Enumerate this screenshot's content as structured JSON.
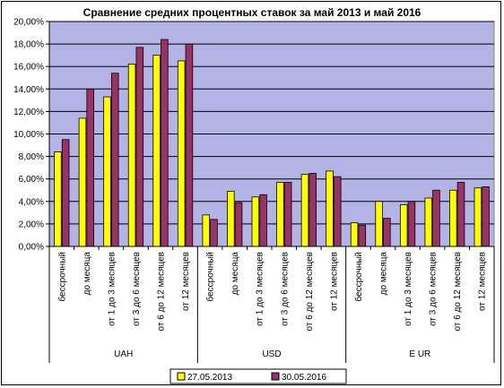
{
  "chart_data": {
    "type": "bar",
    "title": "Сравнение средних процентных ставок за май 2013 и май 2016",
    "xlabel": "",
    "ylabel": "",
    "ylim": [
      0,
      20
    ],
    "y_ticks": [
      "0,00%",
      "2,00%",
      "4,00%",
      "6,00%",
      "8,00%",
      "10,00%",
      "12,00%",
      "14,00%",
      "16,00%",
      "18,00%",
      "20,00%"
    ],
    "grid": true,
    "legend_position": "bottom",
    "groups": [
      {
        "name": "UAH",
        "categories": [
          "бессрочный",
          "до месяца",
          "от 1 до 3 месяцев",
          "от 3 до 6 месяцев",
          "от 6 до 12 месяцев",
          "от 12 месяцев"
        ]
      },
      {
        "name": "USD",
        "categories": [
          "бессрочный",
          "до месяца",
          "от 1 до 3 месяцев",
          "от 3 до 6 месяцев",
          "от 6 до 12 месяцев",
          "от 12 месяцев"
        ]
      },
      {
        "name": "E UR",
        "categories": [
          "бессрочный",
          "до месяца",
          "от 1 до 3 месяцев",
          "от 3 до 6 месяцев",
          "от 6 до 12 месяцев",
          "от 12 месяцев"
        ]
      }
    ],
    "series": [
      {
        "name": "27.05.2013",
        "color": "#ffff00",
        "values": [
          8.4,
          11.4,
          13.3,
          16.2,
          17.0,
          16.5,
          2.8,
          4.9,
          4.4,
          5.7,
          6.4,
          6.7,
          2.1,
          4.0,
          3.7,
          4.3,
          5.0,
          5.2
        ]
      },
      {
        "name": "30.05.2016",
        "color": "#993366",
        "values": [
          9.5,
          14.0,
          15.4,
          17.7,
          18.4,
          18.0,
          2.4,
          3.9,
          4.6,
          5.7,
          6.5,
          6.2,
          1.9,
          2.5,
          4.0,
          5.0,
          5.7,
          5.3
        ]
      }
    ],
    "plot_bg": "#b3b3e6"
  }
}
